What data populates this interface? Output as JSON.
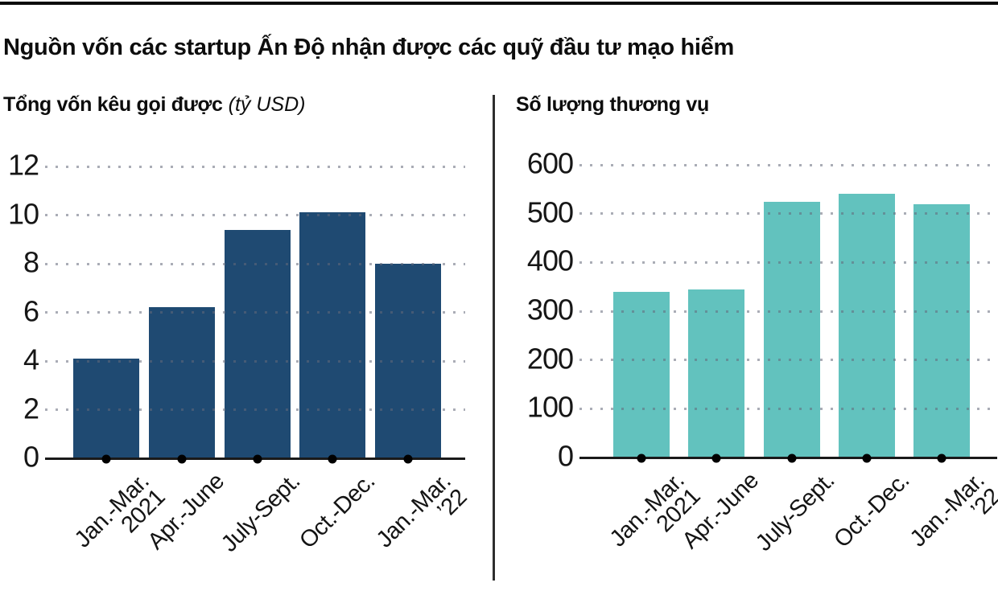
{
  "header": {
    "title": "Nguồn vốn các startup Ấn Độ nhận được các quỹ đầu tư mạo hiểm"
  },
  "chart_data": [
    {
      "type": "bar",
      "title": "Tổng vốn kêu gọi được",
      "unit_note": "(tỷ USD)",
      "categories": [
        "Jan.-Mar. 2021",
        "Apr.-June",
        "July-Sept.",
        "Oct.-Dec.",
        "Jan.-Mar. ’22"
      ],
      "tick_labels": [
        [
          "Jan.-Mar.",
          "2021"
        ],
        [
          "Apr.-June"
        ],
        [
          "July-Sept."
        ],
        [
          "Oct.-Dec."
        ],
        [
          "Jan.-Mar.",
          "’22"
        ]
      ],
      "values": [
        4.1,
        6.2,
        9.4,
        10.1,
        8.0
      ],
      "ylim": [
        0,
        12
      ],
      "yticks": [
        0,
        2,
        4,
        6,
        8,
        10,
        12
      ],
      "bar_color": "#1f4a72",
      "grid": "dotted-horizontal",
      "legend": "none"
    },
    {
      "type": "bar",
      "title": "Số lượng thương vụ",
      "unit_note": "",
      "categories": [
        "Jan.-Mar. 2021",
        "Apr.-June",
        "July-Sept.",
        "Oct.-Dec.",
        "Jan.-Mar. ’22"
      ],
      "tick_labels": [
        [
          "Jan.-Mar.",
          "2021"
        ],
        [
          "Apr.-June"
        ],
        [
          "July-Sept."
        ],
        [
          "Oct.-Dec."
        ],
        [
          "Jan.-Mar.",
          "’22"
        ]
      ],
      "values": [
        340,
        345,
        525,
        540,
        520
      ],
      "ylim": [
        0,
        600
      ],
      "yticks": [
        0,
        100,
        200,
        300,
        400,
        500,
        600
      ],
      "bar_color": "#62c2be",
      "grid": "dotted-horizontal",
      "legend": "none"
    }
  ],
  "colors": {
    "funding_bar": "#1f4a72",
    "deals_bar": "#62c2be",
    "grid_dot": "#9aa0ad",
    "axis": "#1a1a1a",
    "text": "#111111"
  }
}
